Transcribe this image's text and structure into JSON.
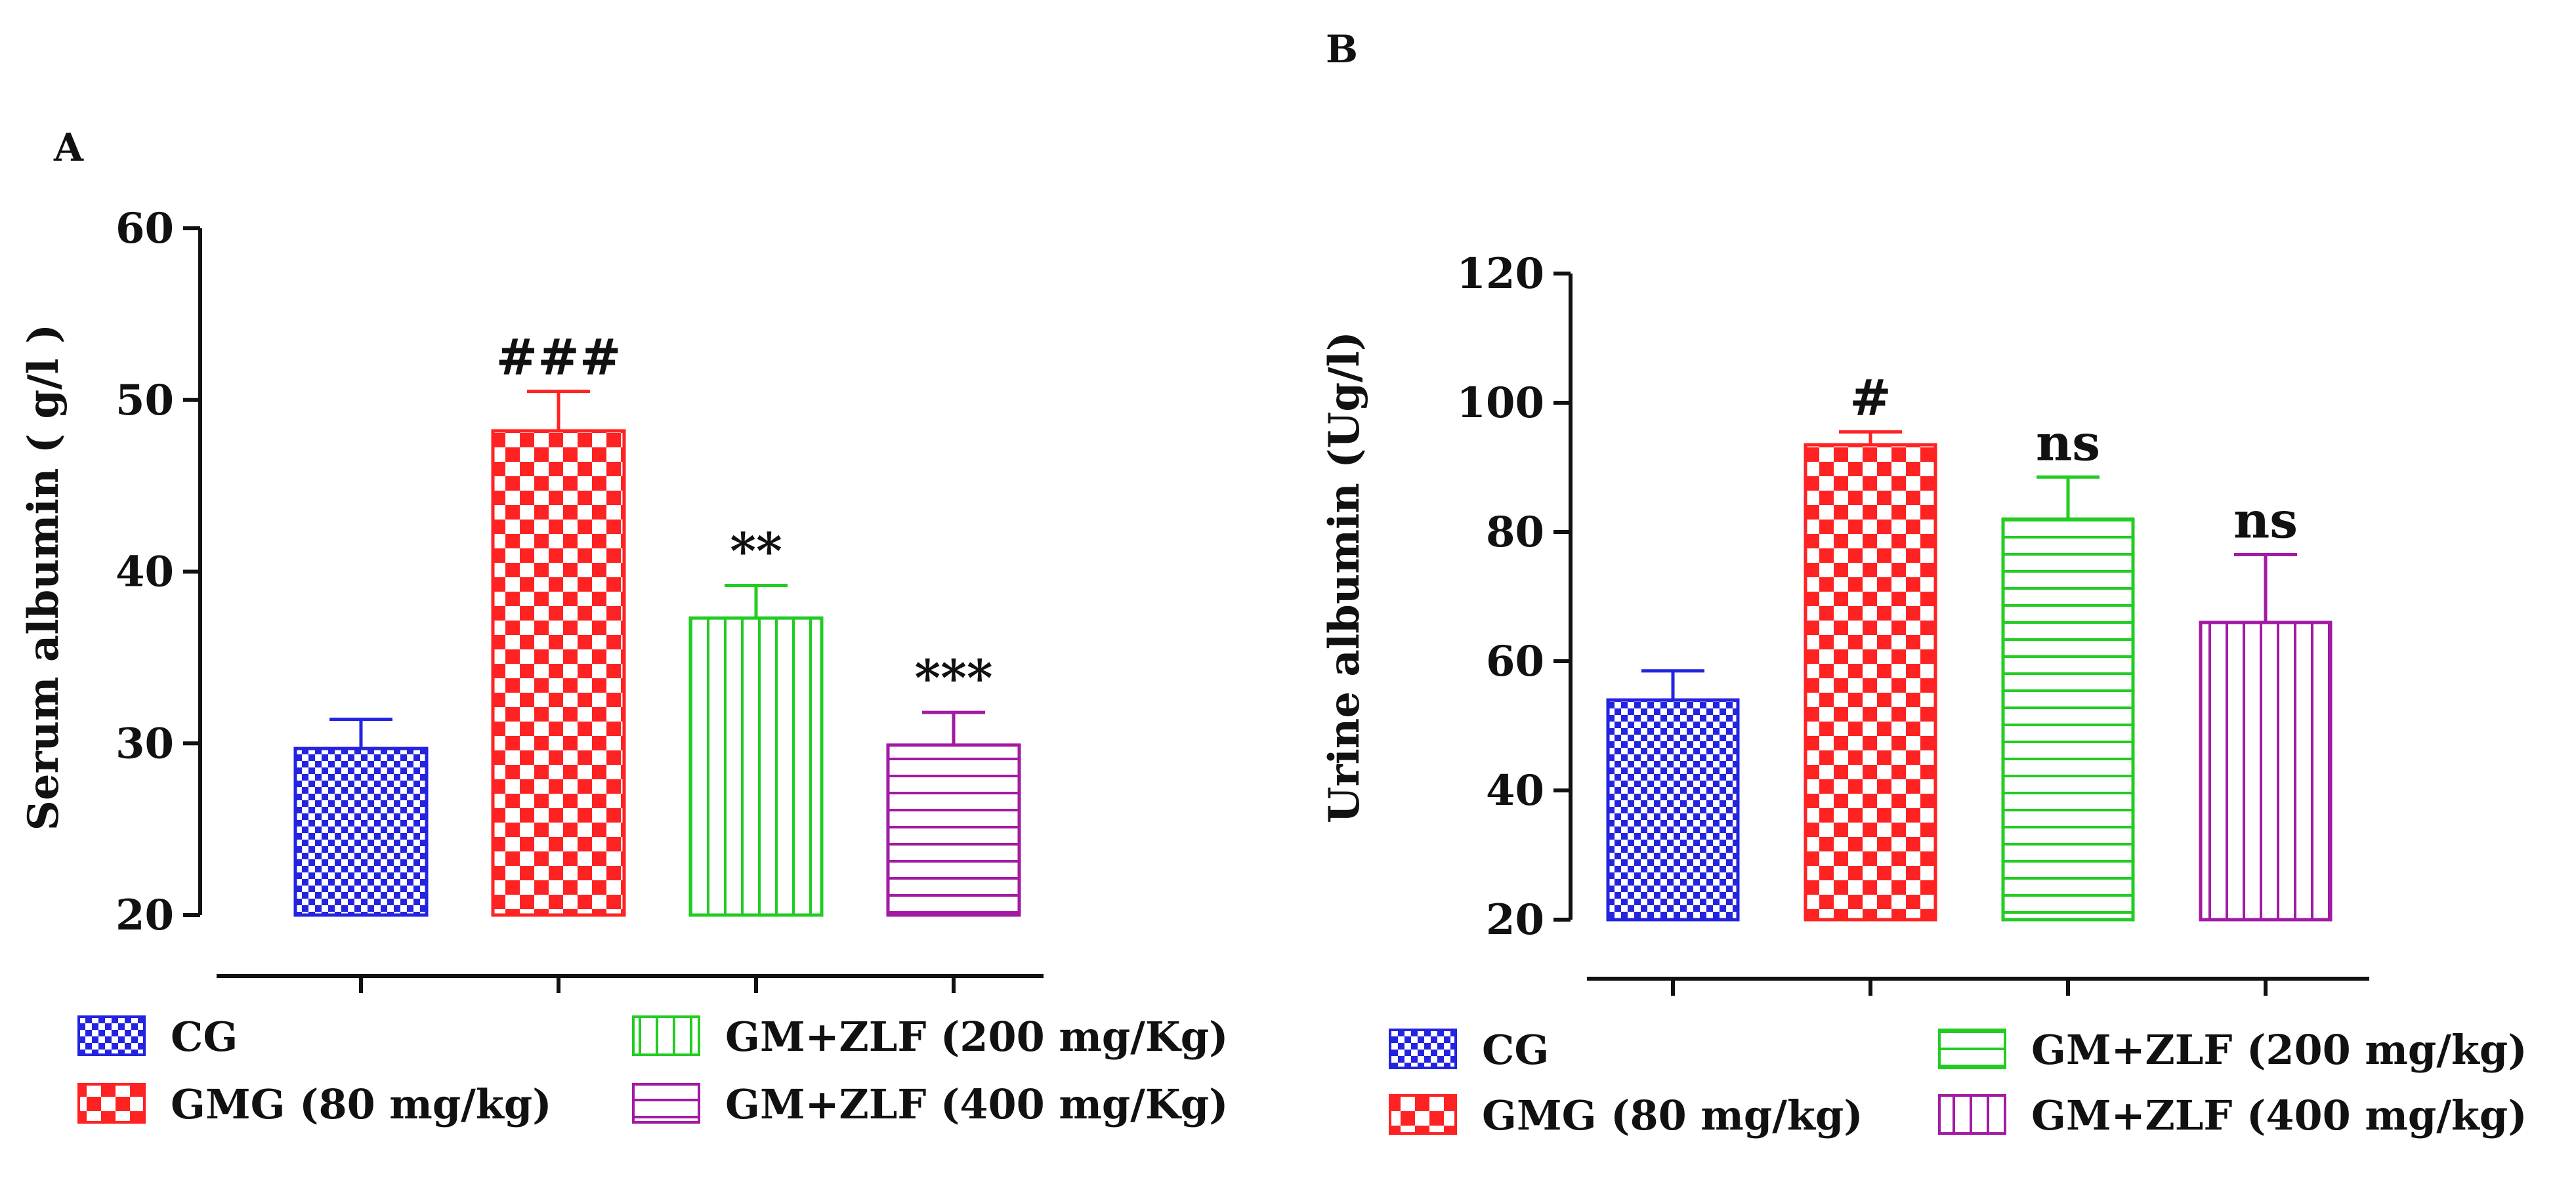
{
  "colors": {
    "CG": "#2323e0",
    "GMG": "#ff2222",
    "ZLF200": "#22cc22",
    "ZLF400": "#a31aa3",
    "axis": "#111111"
  },
  "chart_data": [
    {
      "panel_label": "A",
      "type": "bar",
      "title": "",
      "xlabel": "",
      "ylabel": "Serum albumin ( g/l )",
      "ylim": [
        20,
        60
      ],
      "yticks": [
        20,
        30,
        40,
        50,
        60
      ],
      "grid": false,
      "categories": [
        "CG",
        "GMG (80 mg/kg)",
        "GM+ZLF (200 mg/Kg)",
        "GM+ZLF (400 mg/Kg)"
      ],
      "values": [
        29.7,
        48.2,
        37.3,
        29.9
      ],
      "errors": [
        1.7,
        2.3,
        1.9,
        1.9
      ],
      "annotations": [
        "",
        "###",
        "**",
        "***"
      ],
      "legend": {
        "placement": "bottom",
        "entries": [
          {
            "label": "CG",
            "color_key": "CG",
            "pattern": "checker-fine"
          },
          {
            "label": "GMG (80 mg/kg)",
            "color_key": "GMG",
            "pattern": "checker"
          },
          {
            "label": "GM+ZLF (200 mg/Kg)",
            "color_key": "ZLF200",
            "pattern": "vertical"
          },
          {
            "label": "GM+ZLF (400 mg/Kg)",
            "color_key": "ZLF400",
            "pattern": "horizontal"
          }
        ]
      }
    },
    {
      "panel_label": "B",
      "type": "bar",
      "title": "",
      "xlabel": "",
      "ylabel": "Urine albumin (Ug/l)",
      "ylim": [
        20,
        120
      ],
      "yticks": [
        20,
        40,
        60,
        80,
        100,
        120
      ],
      "grid": false,
      "categories": [
        "CG",
        "GMG (80 mg/kg)",
        "GM+ZLF (200 mg/kg)",
        "GM+ZLF (400 mg/kg)"
      ],
      "values": [
        54,
        93.5,
        82,
        66
      ],
      "errors": [
        4.5,
        2,
        6.5,
        10.5
      ],
      "annotations": [
        "",
        "#",
        "ns",
        "ns"
      ],
      "legend": {
        "placement": "bottom",
        "entries": [
          {
            "label": "CG",
            "color_key": "CG",
            "pattern": "checker-fine"
          },
          {
            "label": "GMG (80 mg/kg)",
            "color_key": "GMG",
            "pattern": "checker"
          },
          {
            "label": "GM+ZLF (200 mg/kg)",
            "color_key": "ZLF200",
            "pattern": "horizontal"
          },
          {
            "label": "GM+ZLF (400 mg/kg)",
            "color_key": "ZLF400",
            "pattern": "vertical"
          }
        ]
      }
    }
  ]
}
